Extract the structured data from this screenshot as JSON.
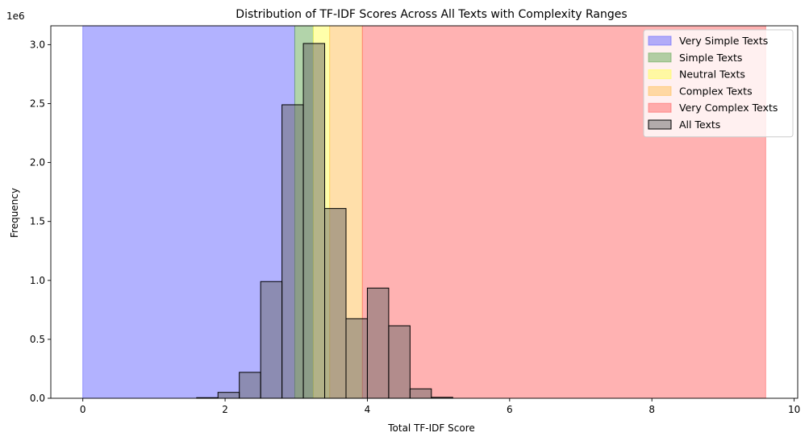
{
  "chart_data": {
    "type": "bar",
    "title": "Distribution of TF-IDF Scores Across All Texts with Complexity Ranges",
    "xlabel": "Total TF-IDF Score",
    "ylabel": "Frequency",
    "y_offset_label": "1e6",
    "xlim": [
      -0.45,
      10.05
    ],
    "ylim": [
      0,
      3.16
    ],
    "x_ticks": [
      0,
      2,
      4,
      6,
      8,
      10
    ],
    "y_ticks": [
      0.0,
      0.5,
      1.0,
      1.5,
      2.0,
      2.5,
      3.0
    ],
    "x_tick_labels": [
      "0",
      "2",
      "4",
      "6",
      "8",
      "10"
    ],
    "y_tick_labels": [
      "0.0",
      "0.5",
      "1.0",
      "1.5",
      "2.0",
      "2.5",
      "3.0"
    ],
    "grid": false,
    "legend_position": "top-right",
    "ranges": [
      {
        "name": "Very Simple Texts",
        "x_start": 0.0,
        "x_end": 2.98,
        "color": "#6666ff",
        "opacity": 0.5
      },
      {
        "name": "Simple Texts",
        "x_start": 2.98,
        "x_end": 3.24,
        "color": "#66aa55",
        "opacity": 0.5
      },
      {
        "name": "Neutral Texts",
        "x_start": 3.24,
        "x_end": 3.47,
        "color": "#ffff55",
        "opacity": 0.5
      },
      {
        "name": "Complex Texts",
        "x_start": 3.47,
        "x_end": 3.93,
        "color": "#ffbf55",
        "opacity": 0.5
      },
      {
        "name": "Very Complex Texts",
        "x_start": 3.93,
        "x_end": 9.6,
        "color": "#ff6666",
        "opacity": 0.5
      }
    ],
    "histogram": {
      "name": "All Texts",
      "color": "#666666",
      "opacity": 0.5,
      "edge_color": "#000000",
      "bin_edges": [
        1.6,
        1.9,
        2.2,
        2.5,
        2.8,
        3.1,
        3.4,
        3.7,
        4.0,
        4.3,
        4.6,
        4.9,
        5.2,
        5.5
      ],
      "values": [
        0.005,
        0.05,
        0.22,
        0.99,
        2.49,
        3.01,
        1.61,
        0.675,
        0.935,
        0.615,
        0.08,
        0.008,
        0.0
      ]
    }
  }
}
